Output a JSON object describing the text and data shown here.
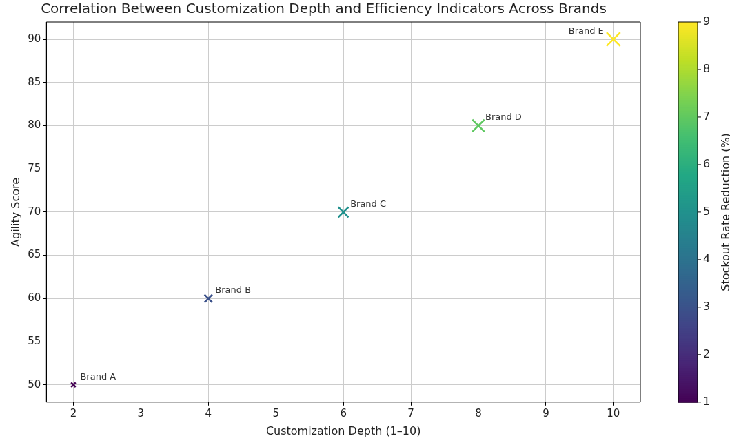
{
  "chart_data": {
    "type": "bubble",
    "title": "Correlation Between Customization Depth and Efficiency Indicators Across Brands",
    "xlabel": "Customization Depth (1–10)",
    "ylabel": "Agility Score",
    "clabel": "Stockout Rate Reduction (%)",
    "x": [
      2,
      4,
      6,
      8,
      10
    ],
    "values": [
      50,
      60,
      70,
      80,
      90
    ],
    "sizes": [
      0.11,
      0.33,
      0.56,
      0.78,
      1
    ],
    "cvalues": [
      1,
      3,
      5,
      7,
      9
    ],
    "clim": [
      1,
      9
    ],
    "cticks": [
      1,
      2,
      3,
      4,
      5,
      6,
      7,
      8,
      9
    ],
    "xlim": [
      1.6,
      10.4
    ],
    "xticks": [
      2,
      3,
      4,
      5,
      6,
      7,
      8,
      9,
      10
    ],
    "ylim": [
      48,
      92
    ],
    "yticks": [
      50,
      55,
      60,
      65,
      70,
      75,
      80,
      85,
      90
    ],
    "marker": "cross",
    "grid": true,
    "legend": false,
    "annotations": [
      {
        "text": "Brand A",
        "x": 2,
        "y": 50
      },
      {
        "text": "Brand B",
        "x": 4,
        "y": 60
      },
      {
        "text": "Brand C",
        "x": 6,
        "y": 70
      },
      {
        "text": "Brand D",
        "x": 8,
        "y": 80
      },
      {
        "text": "Brand E",
        "x": 10,
        "y": 90
      }
    ]
  }
}
